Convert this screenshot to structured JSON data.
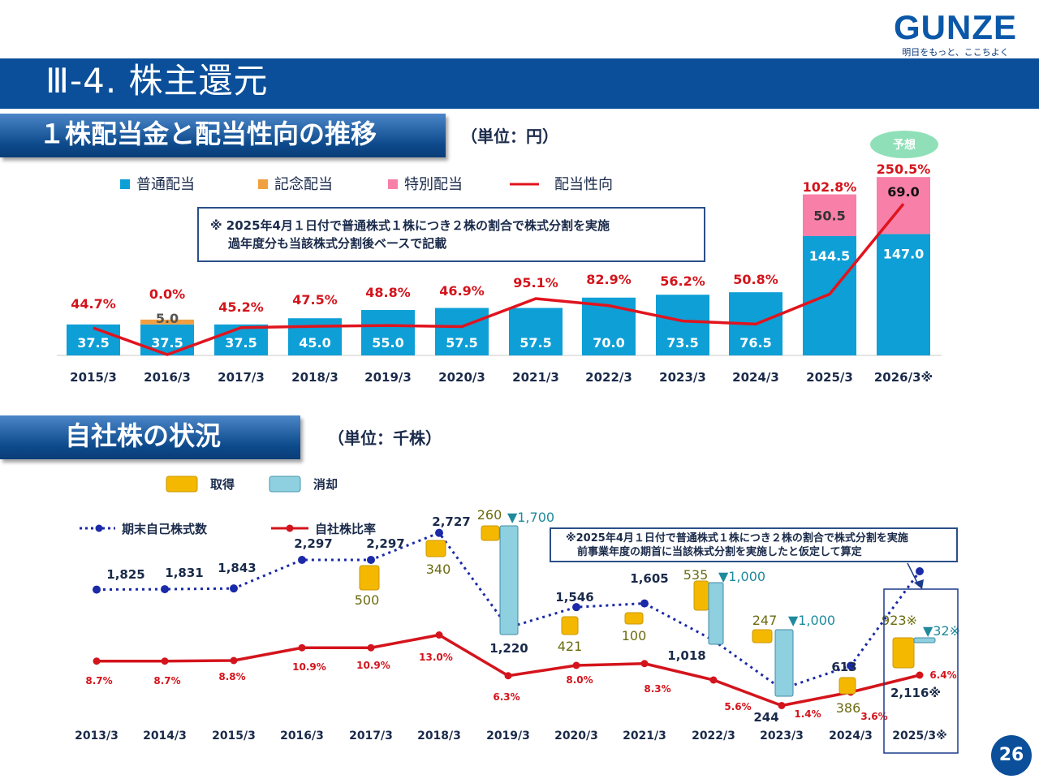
{
  "brand": {
    "logo_text": "GUNZE",
    "tagline": "明日をもっと、ここちよく",
    "color": "#0b57a8"
  },
  "page": {
    "title": "Ⅲ-4. 株主還元",
    "page_number": "26"
  },
  "section1": {
    "heading": "１株配当金と配当性向の推移",
    "unit": "（単位：円）",
    "forecast_badge": "予想",
    "note_line1": "※ 2025年4月１日付で普通株式１株につき２株の割合で株式分割を実施",
    "note_line2": "過年度分も当該株式分割後ベースで記載"
  },
  "section2": {
    "heading": "自社株の状況",
    "unit": "（単位：千株）",
    "note_line1": "※2025年4月１日付で普通株式１株につき２株の割合で株式分割を実施",
    "note_line2": "前事業年度の期首に当該株式分割を実施したと仮定して算定"
  },
  "chart_data": [
    {
      "type": "bar",
      "stacked": true,
      "title": "１株配当金と配当性向の推移",
      "unit": "円",
      "categories": [
        "2015/3",
        "2016/3",
        "2017/3",
        "2018/3",
        "2019/3",
        "2020/3",
        "2021/3",
        "2022/3",
        "2023/3",
        "2024/3",
        "2025/3",
        "2026/3※"
      ],
      "series": [
        {
          "name": "普通配当",
          "color": "#0e9fd6",
          "values": [
            37.5,
            37.5,
            37.5,
            45.0,
            55.0,
            57.5,
            57.5,
            70.0,
            73.5,
            76.5,
            144.5,
            147.0
          ],
          "labels": [
            "37.5",
            "37.5",
            "37.5",
            "45.0",
            "55.0",
            "57.5",
            "57.5",
            "70.0",
            "73.5",
            "76.5",
            "144.5",
            "147.0"
          ]
        },
        {
          "name": "記念配当",
          "color": "#f0a040",
          "values": [
            0,
            5.0,
            0,
            0,
            0,
            0,
            0,
            0,
            0,
            0,
            0,
            0
          ],
          "labels": [
            "",
            "5.0",
            "",
            "",
            "",
            "",
            "",
            "",
            "",
            "",
            "",
            ""
          ]
        },
        {
          "name": "特別配当",
          "color": "#f77fa8",
          "values": [
            0,
            0,
            0,
            0,
            0,
            0,
            0,
            0,
            0,
            0,
            50.5,
            69.0
          ],
          "labels": [
            "",
            "",
            "",
            "",
            "",
            "",
            "",
            "",
            "",
            "",
            "50.5",
            "69.0"
          ]
        }
      ],
      "line_series": {
        "name": "配当性向",
        "color": "#e0141e",
        "unit": "%",
        "values": [
          44.7,
          0.0,
          45.2,
          47.5,
          48.8,
          46.9,
          95.1,
          82.9,
          56.2,
          50.8,
          102.8,
          250.5
        ],
        "labels": [
          "44.7%",
          "0.0%",
          "45.2%",
          "47.5%",
          "48.8%",
          "46.9%",
          "95.1%",
          "82.9%",
          "56.2%",
          "50.8%",
          "102.8%",
          "250.5%"
        ]
      },
      "forecast_category": "2026/3※"
    },
    {
      "type": "line",
      "title": "自社株の状況",
      "unit": "千株",
      "categories": [
        "2013/3",
        "2014/3",
        "2015/3",
        "2016/3",
        "2017/3",
        "2018/3",
        "2019/3",
        "2020/3",
        "2021/3",
        "2022/3",
        "2023/3",
        "2024/3",
        "2025/3※"
      ],
      "series": [
        {
          "name": "期末自己株式数",
          "color": "#1a2aa8",
          "style": "dotted",
          "values": [
            1825,
            1831,
            1843,
            2297,
            2297,
            2727,
            1220,
            1546,
            1605,
            1018,
            244,
            613,
            2116
          ],
          "labels": [
            "1,825",
            "1,831",
            "1,843",
            "2,297",
            "2,297",
            "2,727",
            "1,220",
            "1,546",
            "1,605",
            "1,018",
            "244",
            "613",
            "2,116※"
          ]
        },
        {
          "name": "自社株比率",
          "color": "#d4141c",
          "unit": "%",
          "values": [
            8.7,
            8.7,
            8.8,
            10.9,
            10.9,
            13.0,
            6.3,
            8.0,
            8.3,
            5.6,
            1.4,
            3.6,
            6.4
          ],
          "labels": [
            "8.7%",
            "8.7%",
            "8.8%",
            "10.9%",
            "10.9%",
            "13.0%",
            "6.3%",
            "8.0%",
            "8.3%",
            "5.6%",
            "1.4%",
            "3.6%",
            "6.4%"
          ]
        }
      ],
      "flows": [
        {
          "category": "2017/3",
          "acquired": 500,
          "acquired_label": "500"
        },
        {
          "category": "2018/3",
          "acquired": 340,
          "acquired_label": "340"
        },
        {
          "category": "2019/3",
          "acquired": 260,
          "acquired_label": "260",
          "retired": 1700,
          "retired_label": "▼1,700"
        },
        {
          "category": "2020/3",
          "acquired": 421,
          "acquired_label": "421"
        },
        {
          "category": "2021/3",
          "acquired": 100,
          "acquired_label": "100"
        },
        {
          "category": "2022/3",
          "acquired": 535,
          "acquired_label": "535",
          "retired": 1000,
          "retired_label": "▼1,000"
        },
        {
          "category": "2023/3",
          "acquired": 247,
          "acquired_label": "247",
          "retired": 1000,
          "retired_label": "▼1,000"
        },
        {
          "category": "2024/3",
          "acquired": 386,
          "acquired_label": "386"
        },
        {
          "category": "2025/3※",
          "acquired": 923,
          "acquired_label": "923※",
          "retired": 32,
          "retired_label": "▼32※"
        }
      ],
      "flow_legend": [
        {
          "name": "取得",
          "color": "#f5b800"
        },
        {
          "name": "消却",
          "color": "#8ecfe0"
        }
      ]
    }
  ]
}
